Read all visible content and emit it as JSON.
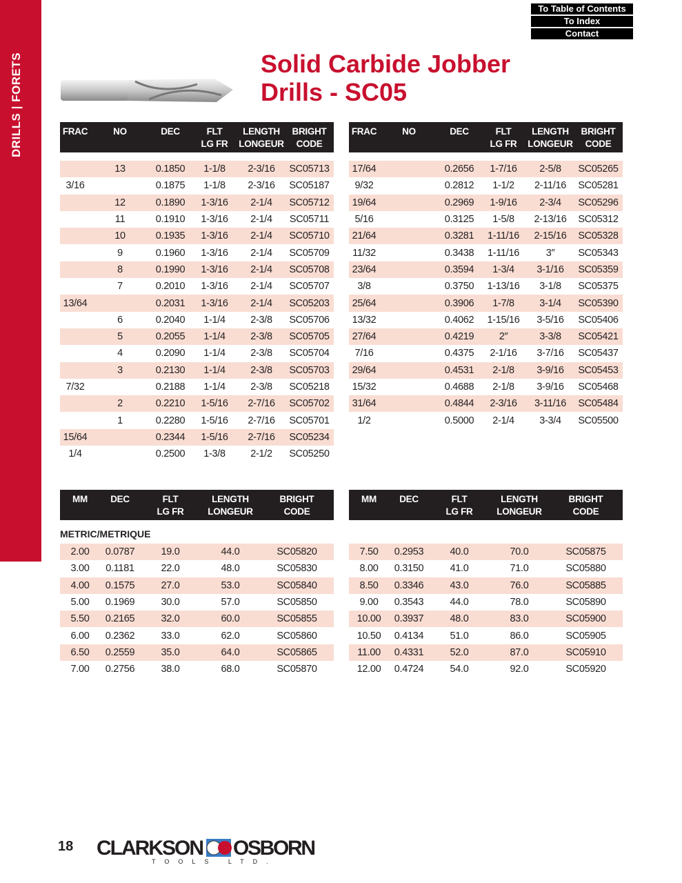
{
  "sidebar": {
    "label": "DRILLS | FORETS"
  },
  "nav": {
    "toc": "To Table of Contents",
    "index": "To Index",
    "contact": "Contact"
  },
  "title": {
    "line1": "Solid Carbide Jobber",
    "line2": "Drills - SC05"
  },
  "colors": {
    "brand_red": "#c8102e",
    "header_bg": "#231f20",
    "row_shade": "#f9ddd3"
  },
  "inch_headers": [
    "FRAC",
    "NO",
    "DEC",
    "FLT\nLG FR",
    "LENGTH\nLONGEUR",
    "BRIGHT\nCODE"
  ],
  "metric_headers": [
    "MM",
    "DEC",
    "FLT\nLG FR",
    "LENGTH\nLONGEUR",
    "BRIGHT\nCODE"
  ],
  "inch_left": [
    [
      "",
      "13",
      "0.1850",
      "1-1/8",
      "2-3/16",
      "SC05713"
    ],
    [
      "3/16",
      "",
      "0.1875",
      "1-1/8",
      "2-3/16",
      "SC05187"
    ],
    [
      "",
      "12",
      "0.1890",
      "1-3/16",
      "2-1/4",
      "SC05712"
    ],
    [
      "",
      "11",
      "0.1910",
      "1-3/16",
      "2-1/4",
      "SC05711"
    ],
    [
      "",
      "10",
      "0.1935",
      "1-3/16",
      "2-1/4",
      "SC05710"
    ],
    [
      "",
      "9",
      "0.1960",
      "1-3/16",
      "2-1/4",
      "SC05709"
    ],
    [
      "",
      "8",
      "0.1990",
      "1-3/16",
      "2-1/4",
      "SC05708"
    ],
    [
      "",
      "7",
      "0.2010",
      "1-3/16",
      "2-1/4",
      "SC05707"
    ],
    [
      "13/64",
      "",
      "0.2031",
      "1-3/16",
      "2-1/4",
      "SC05203"
    ],
    [
      "",
      "6",
      "0.2040",
      "1-1/4",
      "2-3/8",
      "SC05706"
    ],
    [
      "",
      "5",
      "0.2055",
      "1-1/4",
      "2-3/8",
      "SC05705"
    ],
    [
      "",
      "4",
      "0.2090",
      "1-1/4",
      "2-3/8",
      "SC05704"
    ],
    [
      "",
      "3",
      "0.2130",
      "1-1/4",
      "2-3/8",
      "SC05703"
    ],
    [
      "7/32",
      "",
      "0.2188",
      "1-1/4",
      "2-3/8",
      "SC05218"
    ],
    [
      "",
      "2",
      "0.2210",
      "1-5/16",
      "2-7/16",
      "SC05702"
    ],
    [
      "",
      "1",
      "0.2280",
      "1-5/16",
      "2-7/16",
      "SC05701"
    ],
    [
      "15/64",
      "",
      "0.2344",
      "1-5/16",
      "2-7/16",
      "SC05234"
    ],
    [
      "1/4",
      "",
      "0.2500",
      "1-3/8",
      "2-1/2",
      "SC05250"
    ]
  ],
  "inch_right": [
    [
      "17/64",
      "",
      "0.2656",
      "1-7/16",
      "2-5/8",
      "SC05265"
    ],
    [
      "9/32",
      "",
      "0.2812",
      "1-1/2",
      "2-11/16",
      "SC05281"
    ],
    [
      "19/64",
      "",
      "0.2969",
      "1-9/16",
      "2-3/4",
      "SC05296"
    ],
    [
      "5/16",
      "",
      "0.3125",
      "1-5/8",
      "2-13/16",
      "SC05312"
    ],
    [
      "21/64",
      "",
      "0.3281",
      "1-11/16",
      "2-15/16",
      "SC05328"
    ],
    [
      "11/32",
      "",
      "0.3438",
      "1-11/16",
      "3″",
      "SC05343"
    ],
    [
      "23/64",
      "",
      "0.3594",
      "1-3/4",
      "3-1/16",
      "SC05359"
    ],
    [
      "3/8",
      "",
      "0.3750",
      "1-13/16",
      "3-1/8",
      "SC05375"
    ],
    [
      "25/64",
      "",
      "0.3906",
      "1-7/8",
      "3-1/4",
      "SC05390"
    ],
    [
      "13/32",
      "",
      "0.4062",
      "1-15/16",
      "3-5/16",
      "SC05406"
    ],
    [
      "27/64",
      "",
      "0.4219",
      "2″",
      "3-3/8",
      "SC05421"
    ],
    [
      "7/16",
      "",
      "0.4375",
      "2-1/16",
      "3-7/16",
      "SC05437"
    ],
    [
      "29/64",
      "",
      "0.4531",
      "2-1/8",
      "3-9/16",
      "SC05453"
    ],
    [
      "15/32",
      "",
      "0.4688",
      "2-1/8",
      "3-9/16",
      "SC05468"
    ],
    [
      "31/64",
      "",
      "0.4844",
      "2-3/16",
      "3-11/16",
      "SC05484"
    ],
    [
      "1/2",
      "",
      "0.5000",
      "2-1/4",
      "3-3/4",
      "SC05500"
    ]
  ],
  "metric_label": "METRIC/METRIQUE",
  "metric_left": [
    [
      "2.00",
      "0.0787",
      "19.0",
      "44.0",
      "SC05820"
    ],
    [
      "3.00",
      "0.1181",
      "22.0",
      "48.0",
      "SC05830"
    ],
    [
      "4.00",
      "0.1575",
      "27.0",
      "53.0",
      "SC05840"
    ],
    [
      "5.00",
      "0.1969",
      "30.0",
      "57.0",
      "SC05850"
    ],
    [
      "5.50",
      "0.2165",
      "32.0",
      "60.0",
      "SC05855"
    ],
    [
      "6.00",
      "0.2362",
      "33.0",
      "62.0",
      "SC05860"
    ],
    [
      "6.50",
      "0.2559",
      "35.0",
      "64.0",
      "SC05865"
    ],
    [
      "7.00",
      "0.2756",
      "38.0",
      "68.0",
      "SC05870"
    ]
  ],
  "metric_right": [
    [
      "7.50",
      "0.2953",
      "40.0",
      "70.0",
      "SC05875"
    ],
    [
      "8.00",
      "0.3150",
      "41.0",
      "71.0",
      "SC05880"
    ],
    [
      "8.50",
      "0.3346",
      "43.0",
      "76.0",
      "SC05885"
    ],
    [
      "9.00",
      "0.3543",
      "44.0",
      "78.0",
      "SC05890"
    ],
    [
      "10.00",
      "0.3937",
      "48.0",
      "83.0",
      "SC05900"
    ],
    [
      "10.50",
      "0.4134",
      "51.0",
      "86.0",
      "SC05905"
    ],
    [
      "11.00",
      "0.4331",
      "52.0",
      "87.0",
      "SC05910"
    ],
    [
      "12.00",
      "0.4724",
      "54.0",
      "92.0",
      "SC05920"
    ]
  ],
  "footer": {
    "page_number": "18",
    "logo_text_left": "CLARKSON",
    "logo_text_right": "OSBORN",
    "logo_sub": "T O O L S   L T D."
  }
}
